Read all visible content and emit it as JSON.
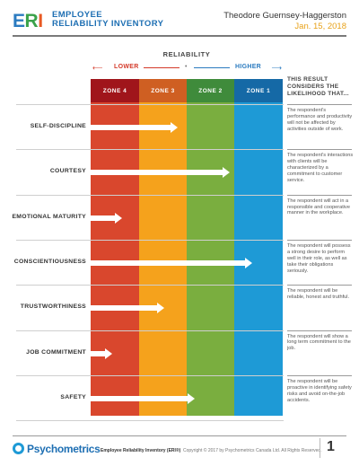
{
  "header": {
    "logo": {
      "e": "E",
      "r": "R",
      "i": "I"
    },
    "title_line1": "EMPLOYEE",
    "title_line2": "RELIABILITY INVENTORY",
    "respondent": "Theodore Guernsey-Haggerston",
    "date": "Jan. 15, 2018"
  },
  "scale": {
    "title": "RELIABILITY",
    "lower": "LOWER",
    "higher": "HIGHER",
    "left_arrow": "⟵",
    "right_arrow": "⟶",
    "center": "•",
    "considers": "THIS RESULT CONSIDERS THE LIKELIHOOD THAT..."
  },
  "zones": [
    {
      "label": "ZONE 4",
      "color": "#d9472d",
      "header_color": "#a0151b"
    },
    {
      "label": "ZONE 3",
      "color": "#f5a21c",
      "header_color": "#cf5f22"
    },
    {
      "label": "ZONE 2",
      "color": "#7aae3f",
      "header_color": "#3f8b3b"
    },
    {
      "label": "ZONE 1",
      "color": "#1e9ad6",
      "header_color": "#1569a6"
    }
  ],
  "traits": [
    {
      "name": "SELF-DISCIPLINE",
      "score": 0.42,
      "description": "The respondent's performance and productivity will not be affected by activities outside of work."
    },
    {
      "name": "COURTESY",
      "score": 0.69,
      "description": "The respondent's interactions with clients will be characterized by a commitment to customer service."
    },
    {
      "name": "EMOTIONAL MATURITY",
      "score": 0.13,
      "description": "The respondent will act in a responsible and cooperative manner in the workplace."
    },
    {
      "name": "CONSCIENTIOUSNESS",
      "score": 0.81,
      "description": "The respondent will possess a strong desire to perform well in their role, as well as take their obligations seriously."
    },
    {
      "name": "TRUSTWORTHINESS",
      "score": 0.35,
      "description": "The respondent will be reliable, honest and truthful."
    },
    {
      "name": "JOB COMMITMENT",
      "score": 0.08,
      "description": "The respondent will show a long term commitment to the job."
    },
    {
      "name": "SAFETY",
      "score": 0.51,
      "description": "The respondent will be proactive in identifying safety risks and avoid on-the-job accidents."
    }
  ],
  "footer": {
    "brand": "Psychometrics",
    "product": "Employee Reliability Inventory (ERI®)",
    "copyright": "Copyright © 2017 by Psychometrics Canada Ltd. All Rights Reserved.",
    "page": "1"
  }
}
